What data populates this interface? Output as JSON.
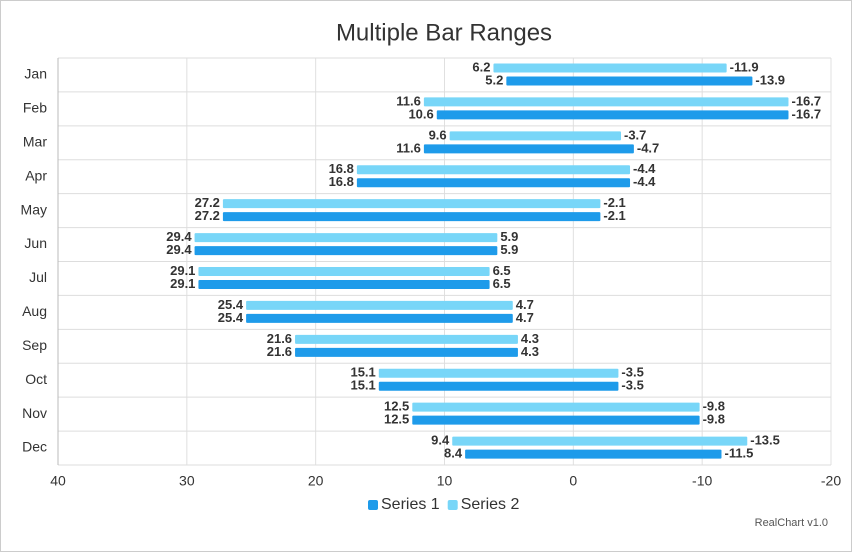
{
  "chart_data": {
    "type": "bar-range",
    "orientation": "horizontal",
    "title": "Multiple Bar Ranges",
    "categories": [
      "Jan",
      "Feb",
      "Mar",
      "Apr",
      "May",
      "Jun",
      "Jul",
      "Aug",
      "Sep",
      "Oct",
      "Nov",
      "Dec"
    ],
    "series": [
      {
        "name": "Series 1",
        "color": "#1e9bea",
        "values": [
          [
            5.2,
            -13.9
          ],
          [
            10.6,
            -16.7
          ],
          [
            11.6,
            -4.7
          ],
          [
            16.8,
            -4.4
          ],
          [
            27.2,
            -2.1
          ],
          [
            29.4,
            5.9
          ],
          [
            29.1,
            6.5
          ],
          [
            25.4,
            4.7
          ],
          [
            21.6,
            4.3
          ],
          [
            15.1,
            -3.5
          ],
          [
            12.5,
            -9.8
          ],
          [
            8.4,
            -11.5
          ]
        ]
      },
      {
        "name": "Series 2",
        "color": "#78d6f8",
        "values": [
          [
            6.2,
            -11.9
          ],
          [
            11.6,
            -16.7
          ],
          [
            9.6,
            -3.7
          ],
          [
            16.8,
            -4.4
          ],
          [
            27.2,
            -2.1
          ],
          [
            29.4,
            5.9
          ],
          [
            29.1,
            6.5
          ],
          [
            25.4,
            4.7
          ],
          [
            21.6,
            4.3
          ],
          [
            15.1,
            -3.5
          ],
          [
            12.5,
            -9.8
          ],
          [
            9.4,
            -13.5
          ]
        ]
      }
    ],
    "xlim": [
      40,
      -20
    ],
    "xticks": [
      40,
      30,
      20,
      10,
      0,
      -10,
      -20
    ],
    "grid": true,
    "legend": "bottom",
    "credits": "RealChart v1.0"
  }
}
